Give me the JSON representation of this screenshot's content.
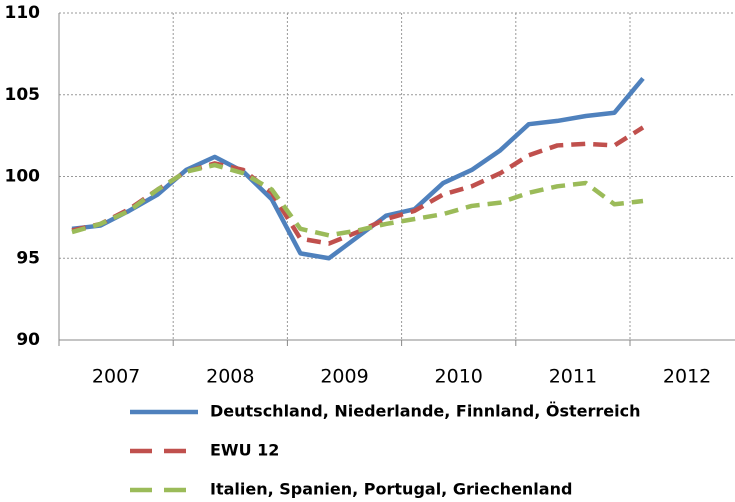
{
  "chart_data": {
    "type": "line",
    "x_labels": [
      "2007",
      "2008",
      "2009",
      "2010",
      "2011",
      "2012"
    ],
    "ylim": [
      90,
      110
    ],
    "yticks": [
      90,
      95,
      100,
      105,
      110
    ],
    "grid": true,
    "series": [
      {
        "name": "Deutschland, Niederlande, Finnland, Österreich",
        "color": "#4f81bd",
        "dash": "solid",
        "values": [
          96.8,
          97.0,
          97.9,
          98.9,
          100.4,
          101.2,
          100.3,
          98.6,
          95.3,
          95.0,
          96.3,
          97.6,
          98.0,
          99.6,
          100.4,
          101.6,
          103.2,
          103.4,
          103.7,
          103.9,
          106.0
        ]
      },
      {
        "name": "EWU 12",
        "color": "#c0504d",
        "dash": "dashed",
        "values": [
          96.7,
          97.1,
          98.0,
          99.2,
          100.3,
          100.8,
          100.4,
          99.0,
          96.2,
          95.9,
          96.6,
          97.4,
          97.9,
          98.9,
          99.4,
          100.2,
          101.3,
          101.9,
          102.0,
          101.9,
          103.0
        ]
      },
      {
        "name": "Italien, Spanien, Portugal, Griechenland",
        "color": "#9bbb59",
        "dash": "dashed",
        "values": [
          96.6,
          97.1,
          97.9,
          99.2,
          100.3,
          100.7,
          100.2,
          99.2,
          96.8,
          96.4,
          96.7,
          97.1,
          97.4,
          97.7,
          98.2,
          98.4,
          99.0,
          99.4,
          99.6,
          98.3,
          98.5
        ]
      }
    ]
  }
}
